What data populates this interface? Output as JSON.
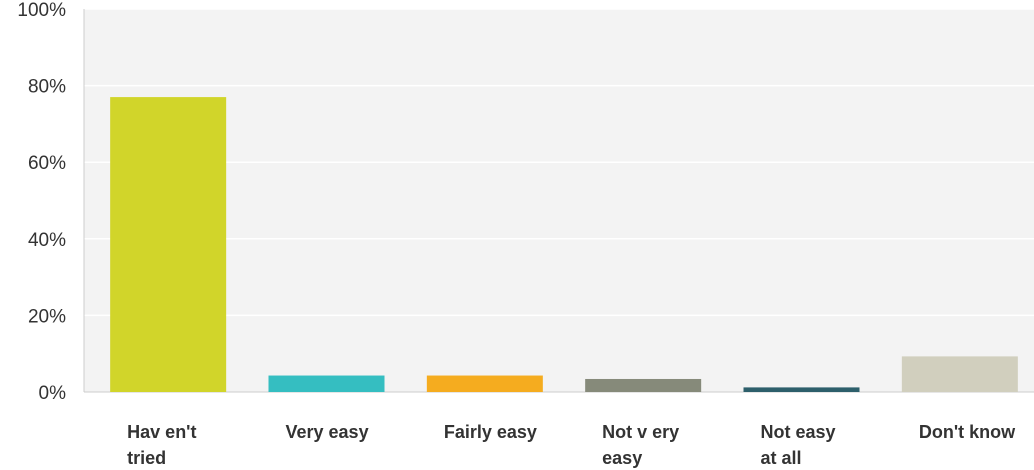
{
  "chart_data": {
    "type": "bar",
    "title": "",
    "xlabel": "",
    "ylabel": "",
    "ylim": [
      0,
      100
    ],
    "y_ticks": [
      "0%",
      "20%",
      "40%",
      "60%",
      "80%",
      "100%"
    ],
    "y_tick_values": [
      0,
      20,
      40,
      60,
      80,
      100
    ],
    "grid": true,
    "categories": [
      [
        "Hav en't",
        "tried"
      ],
      [
        "Very easy"
      ],
      [
        "Fairly easy"
      ],
      [
        "Not v ery",
        "easy"
      ],
      [
        "Not easy",
        "at all"
      ],
      [
        "Don't know"
      ]
    ],
    "values": [
      77,
      4.3,
      4.3,
      3.4,
      1.2,
      9.3
    ],
    "colors": [
      "#d1d52a",
      "#35bec1",
      "#f5ac1f",
      "#868a7a",
      "#2d5f6b",
      "#d1cfbe"
    ],
    "plot_background": "#f3f3f3",
    "gridline_color": "#ffffff",
    "axis_line_color": "#cccccc"
  }
}
